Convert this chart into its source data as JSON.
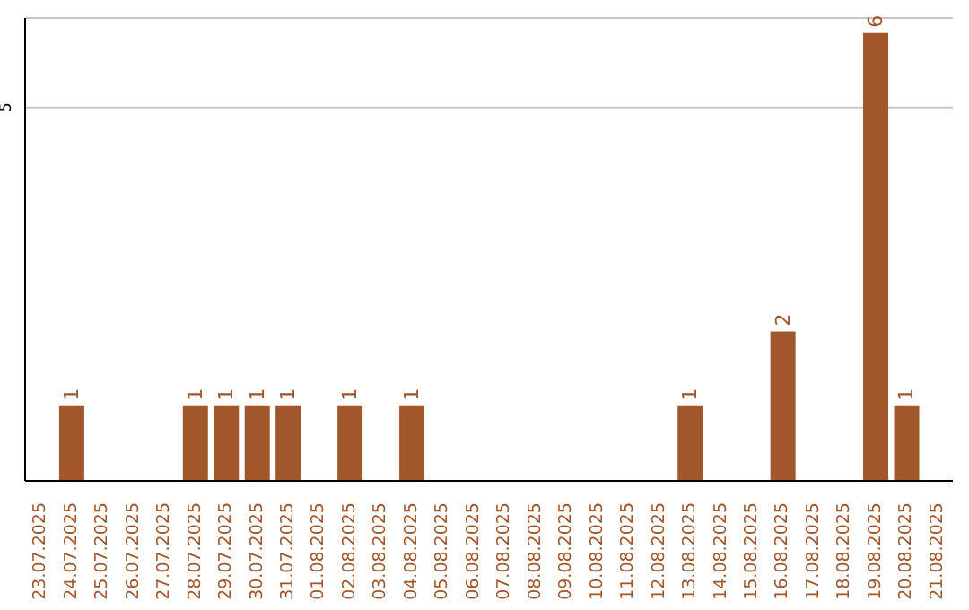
{
  "chart_data": {
    "type": "bar",
    "categories": [
      "23.07.2025",
      "24.07.2025",
      "25.07.2025",
      "26.07.2025",
      "27.07.2025",
      "28.07.2025",
      "29.07.2025",
      "30.07.2025",
      "31.07.2025",
      "01.08.2025",
      "02.08.2025",
      "03.08.2025",
      "04.08.2025",
      "05.08.2025",
      "06.08.2025",
      "07.08.2025",
      "08.08.2025",
      "09.08.2025",
      "10.08.2025",
      "11.08.2025",
      "12.08.2025",
      "13.08.2025",
      "14.08.2025",
      "15.08.2025",
      "16.08.2025",
      "17.08.2025",
      "18.08.2025",
      "19.08.2025",
      "20.08.2025",
      "21.08.2025"
    ],
    "values": [
      0,
      1,
      0,
      0,
      0,
      1,
      1,
      1,
      1,
      0,
      1,
      0,
      1,
      0,
      0,
      0,
      0,
      0,
      0,
      0,
      0,
      1,
      0,
      0,
      2,
      0,
      0,
      6,
      1,
      0
    ],
    "value_labels": [
      null,
      "1",
      null,
      null,
      null,
      "1",
      "1",
      "1",
      "1",
      null,
      "1",
      null,
      "1",
      null,
      null,
      null,
      null,
      null,
      null,
      null,
      null,
      "1",
      null,
      null,
      "2",
      null,
      null,
      "6",
      "1",
      null
    ],
    "color": "#a0572b",
    "ylim": [
      0,
      6.2
    ],
    "yticks": [
      5
    ],
    "grid": "y",
    "legend": false
  }
}
